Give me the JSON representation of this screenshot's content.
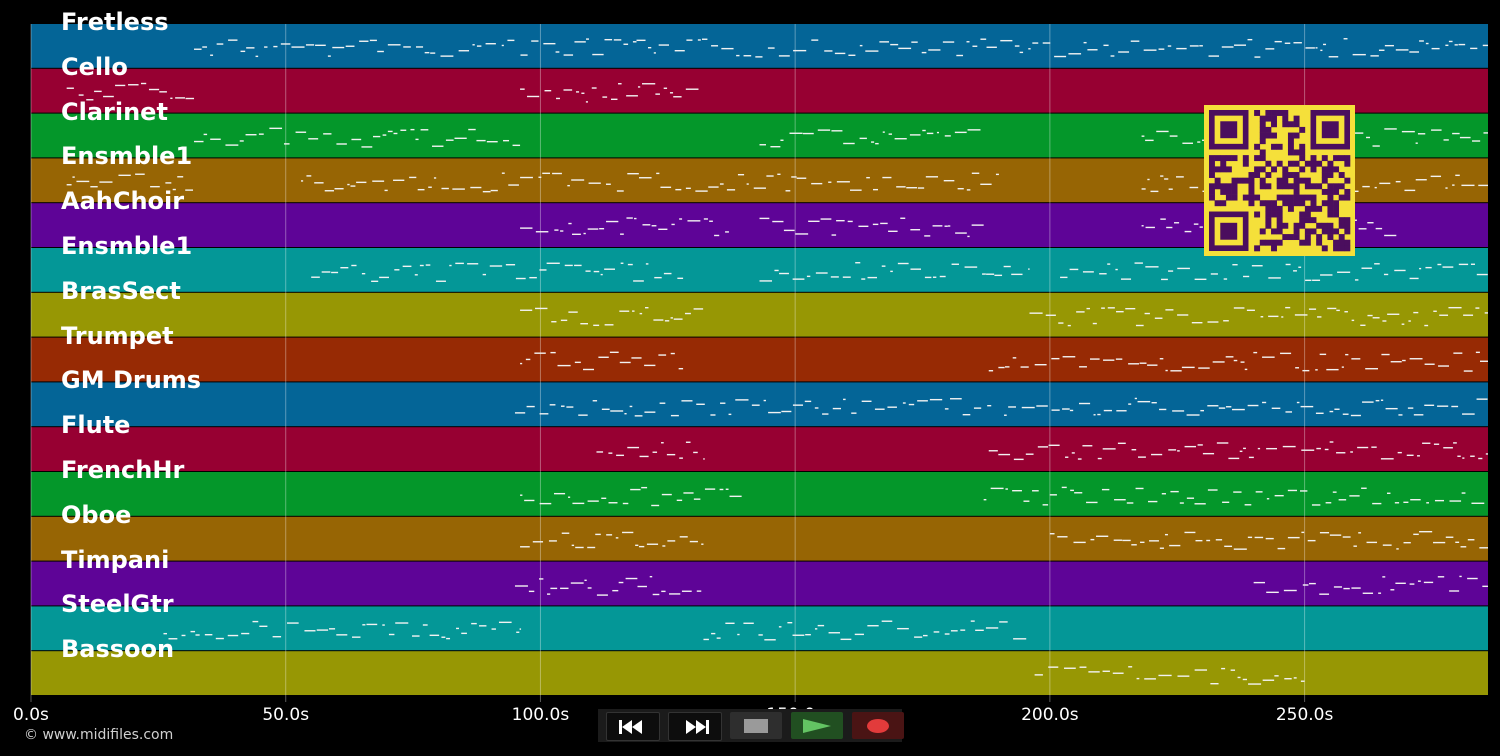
{
  "tracks": [
    {
      "name": "Fretless",
      "color": "#046597"
    },
    {
      "name": "Cello",
      "color": "#970032"
    },
    {
      "name": "Clarinet",
      "color": "#04972a"
    },
    {
      "name": "Ensmble1",
      "color": "#976504"
    },
    {
      "name": "AahChoir",
      "color": "#5e0497"
    },
    {
      "name": "Ensmble1",
      "color": "#049797"
    },
    {
      "name": "BrasSect",
      "color": "#979704"
    },
    {
      "name": "Trumpet",
      "color": "#972a04"
    },
    {
      "name": "GM Drums",
      "color": "#046597"
    },
    {
      "name": "Flute",
      "color": "#970032"
    },
    {
      "name": "FrenchHr",
      "color": "#04972a"
    },
    {
      "name": "Oboe",
      "color": "#976504"
    },
    {
      "name": "Timpani",
      "color": "#5e0497"
    },
    {
      "name": "SteelGtr",
      "color": "#049797"
    },
    {
      "name": "Bassoon",
      "color": "#979704"
    }
  ],
  "timeline": {
    "range_seconds": [
      0,
      286
    ],
    "ticks": [
      {
        "value": 0,
        "label": "0.0s"
      },
      {
        "value": 50,
        "label": "50.0s"
      },
      {
        "value": 100,
        "label": "100.0s"
      },
      {
        "value": 150,
        "label": "150.0s"
      },
      {
        "value": 200,
        "label": "200.0s"
      },
      {
        "value": 250,
        "label": "250.0s"
      }
    ]
  },
  "copyright": "© www.midifiles.com",
  "transport": {
    "buttons": [
      {
        "name": "rewind-button",
        "icon": "rewind-icon",
        "color": "#ffffff"
      },
      {
        "name": "fast-forward-button",
        "icon": "fast-forward-icon",
        "color": "#ffffff"
      },
      {
        "name": "stop-button",
        "icon": "stop-icon",
        "color": "#999999"
      },
      {
        "name": "play-button",
        "icon": "play-icon",
        "color": "#5fbf5f"
      },
      {
        "name": "record-button",
        "icon": "record-icon",
        "color": "#e03a3a"
      }
    ]
  },
  "qr_code": {
    "icon": "qr-code-icon",
    "fg": "#4b0e5e",
    "bg": "#f5e03a"
  }
}
